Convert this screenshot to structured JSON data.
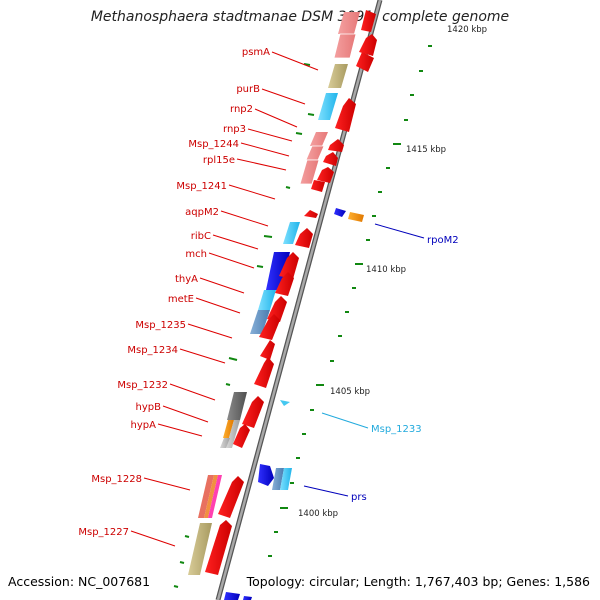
{
  "title": "Methanosphaera stadtmanae DSM 3091, complete genome",
  "footer": {
    "accession": "Accession: NC_007681",
    "topology": "Topology: circular; Length: 1,767,403 bp; Genes: 1,586"
  },
  "scale_labels": [
    "1420 kbp",
    "1415 kbp",
    "1410 kbp",
    "1405 kbp",
    "1400 kbp"
  ],
  "gene_labels_left": [
    "psmA",
    "purB",
    "rnp2",
    "rnp3",
    "Msp_1244",
    "rpl15e",
    "Msp_1241",
    "aqpM2",
    "ribC",
    "mch",
    "thyA",
    "metE",
    "Msp_1235",
    "Msp_1234",
    "Msp_1232",
    "hypB",
    "hypA",
    "Msp_1228",
    "Msp_1227"
  ],
  "gene_labels_right": [
    "rpoM2",
    "Msp_1233",
    "prs"
  ],
  "colors": {
    "left_label": "#cc0000",
    "right_label": "#0000bb",
    "highlight_label": "#22aadd",
    "tick": "#118811",
    "backbone": "#808080"
  }
}
